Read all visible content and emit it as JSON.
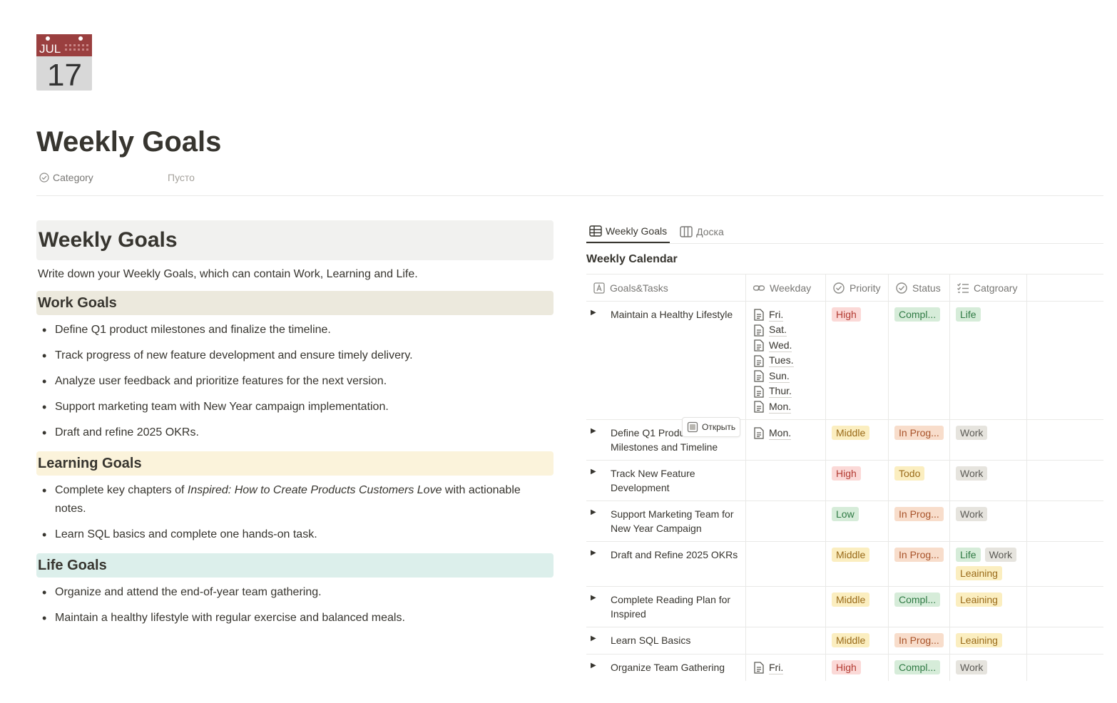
{
  "calendar_icon": {
    "month": "JUL",
    "day": "17"
  },
  "page_title": "Weekly Goals",
  "property": {
    "name": "Category",
    "value": "Пусто"
  },
  "left": {
    "heading": "Weekly Goals",
    "intro": "Write down your Weekly Goals, which can contain Work, Learning and Life.",
    "work": {
      "title": "Work Goals",
      "items": [
        "Define Q1 product milestones and finalize the timeline.",
        "Track progress of new feature development and ensure timely delivery.",
        "Analyze user feedback and prioritize features for the next version.",
        "Support marketing team with New Year campaign implementation.",
        "Draft and refine 2025 OKRs."
      ]
    },
    "learning": {
      "title": "Learning Goals",
      "item1_pre": "Complete key chapters of ",
      "item1_italic": "Inspired: How to Create Products Customers Love",
      "item1_post": " with actionable notes.",
      "item2": "Learn SQL basics and complete one hands-on task."
    },
    "life": {
      "title": "Life Goals",
      "items": [
        "Organize and attend the end-of-year team gathering.",
        "Maintain a healthy lifestyle with regular exercise and balanced meals."
      ]
    }
  },
  "database": {
    "tabs": [
      "Weekly Goals",
      "Доска"
    ],
    "title": "Weekly Calendar",
    "columns": [
      "Goals&Tasks",
      "Weekday",
      "Priority",
      "Status",
      "Catgroary"
    ],
    "open_button": "Открыть",
    "rows": [
      {
        "title": "Maintain a Healthy Lifestyle",
        "weekdays": [
          "Fri.",
          "Sat.",
          "Wed.",
          "Tues.",
          "Sun.",
          "Thur.",
          "Mon."
        ],
        "priority": "High",
        "status": "Compl...",
        "category": [
          "Life"
        ]
      },
      {
        "title": "Define Q1 Produ… Milestones and Timeline",
        "weekdays": [
          "Mon."
        ],
        "priority": "Middle",
        "status": "In Prog...",
        "category": [
          "Work"
        ]
      },
      {
        "title": "Track New Feature Development",
        "weekdays": [],
        "priority": "High",
        "status": "Todo",
        "category": [
          "Work"
        ]
      },
      {
        "title": "Support Marketing Team for New Year Campaign",
        "weekdays": [],
        "priority": "Low",
        "status": "In Prog...",
        "category": [
          "Work"
        ]
      },
      {
        "title": "Draft and Refine 2025 OKRs",
        "weekdays": [],
        "priority": "Middle",
        "status": "In Prog...",
        "category": [
          "Life",
          "Work",
          "Leaining"
        ]
      },
      {
        "title": "Complete Reading Plan for Inspired",
        "weekdays": [],
        "priority": "Middle",
        "status": "Compl...",
        "category": [
          "Leaining"
        ]
      },
      {
        "title": "Learn SQL Basics",
        "weekdays": [],
        "priority": "Middle",
        "status": "In Prog...",
        "category": [
          "Leaining"
        ]
      },
      {
        "title": "Organize Team Gathering",
        "weekdays": [
          "Fri."
        ],
        "priority": "High",
        "status": "Compl...",
        "category": [
          "Work"
        ]
      }
    ]
  },
  "colors": {
    "priority_high": "#fbd9d7",
    "priority_middle": "#fbeec0",
    "priority_low": "#d6ecd9",
    "work_bg": "#ece9dd",
    "learning_bg": "#fbf3db",
    "life_bg": "#dcefeb"
  }
}
